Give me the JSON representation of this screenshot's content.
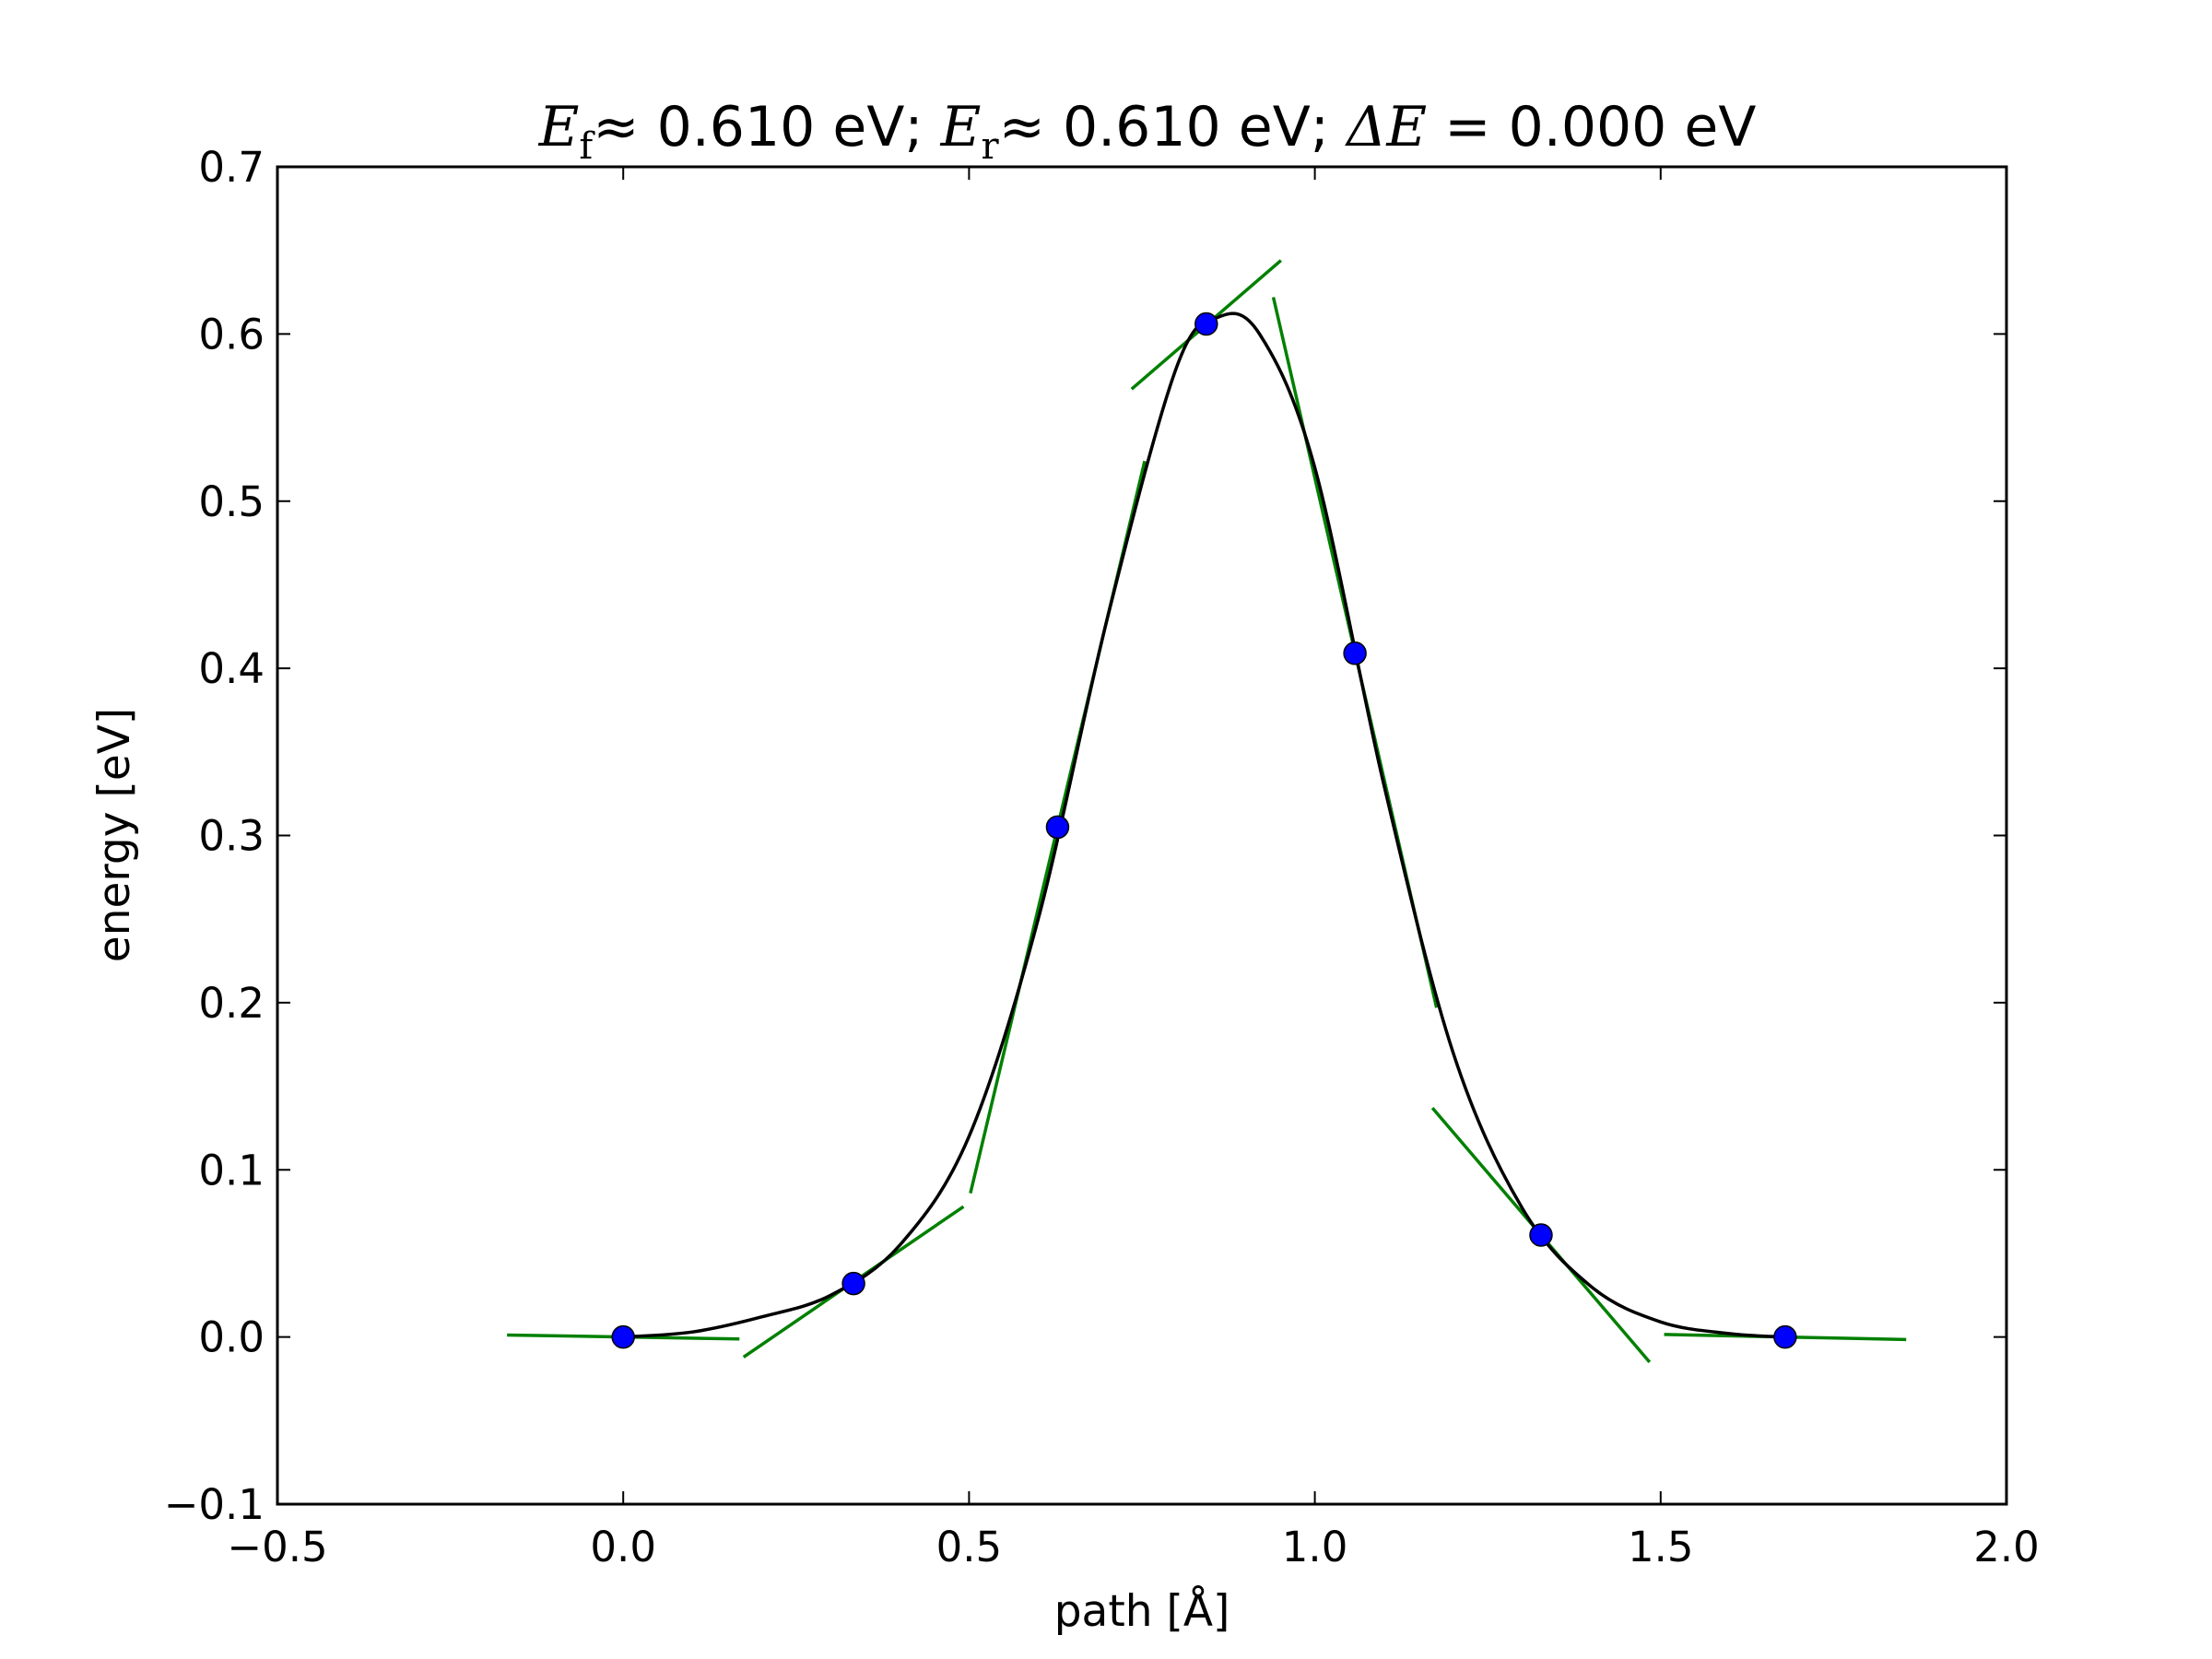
{
  "chart_data": {
    "type": "line",
    "title": {
      "ef_symbol": "E",
      "ef_sub": "f",
      "ef_rest": "≈ 0.610 eV; ",
      "er_symbol": "E",
      "er_sub": "r",
      "er_rest": "≈ 0.610 eV; ",
      "de_symbol": "ΔE",
      "de_rest": " = 0.000 eV"
    },
    "xlabel": "path [Å]",
    "ylabel": "energy [eV]",
    "xlim": [
      -0.5,
      2.0
    ],
    "ylim": [
      -0.1,
      0.7
    ],
    "xticks": [
      -0.5,
      0.0,
      0.5,
      1.0,
      1.5,
      2.0
    ],
    "xtick_labels": [
      "−0.5",
      "0.0",
      "0.5",
      "1.0",
      "1.5",
      "2.0"
    ],
    "yticks": [
      -0.1,
      0.0,
      0.1,
      0.2,
      0.3,
      0.4,
      0.5,
      0.6,
      0.7
    ],
    "ytick_labels": [
      "−0.1",
      "0.0",
      "0.1",
      "0.2",
      "0.3",
      "0.4",
      "0.5",
      "0.6",
      "0.7"
    ],
    "grid": false,
    "series": [
      {
        "kind": "points",
        "color": "#0000ff",
        "x": [
          0.0,
          0.333,
          0.628,
          0.843,
          1.058,
          1.327,
          1.68
        ],
        "y": [
          0.0,
          0.032,
          0.305,
          0.606,
          0.409,
          0.061,
          0.0
        ]
      },
      {
        "kind": "fit-curve",
        "color": "#000000",
        "x": [
          0.0,
          0.1,
          0.2,
          0.3,
          0.4,
          0.5,
          0.6,
          0.7,
          0.8,
          0.86,
          0.92,
          1.0,
          1.1,
          1.2,
          1.3,
          1.4,
          1.5,
          1.6,
          1.68
        ],
        "y": [
          0.0,
          0.003,
          0.012,
          0.025,
          0.055,
          0.12,
          0.25,
          0.43,
          0.58,
          0.61,
          0.6,
          0.52,
          0.33,
          0.17,
          0.077,
          0.03,
          0.009,
          0.002,
          0.0
        ]
      },
      {
        "kind": "tangents",
        "color": "#008000",
        "segments": [
          [
            [
              -0.168,
              0.0012
            ],
            [
              0.168,
              -0.0012
            ]
          ],
          [
            [
              0.174,
              -0.012
            ],
            [
              0.492,
              0.078
            ]
          ],
          [
            [
              0.502,
              0.086
            ],
            [
              0.754,
              0.524
            ]
          ],
          [
            [
              0.735,
              0.567
            ],
            [
              0.951,
              0.644
            ]
          ],
          [
            [
              0.94,
              0.622
            ],
            [
              1.176,
              0.197
            ]
          ],
          [
            [
              1.17,
              0.137
            ],
            [
              1.484,
              -0.015
            ]
          ],
          [
            [
              1.505,
              0.0015
            ],
            [
              1.855,
              -0.0015
            ]
          ]
        ]
      }
    ]
  }
}
